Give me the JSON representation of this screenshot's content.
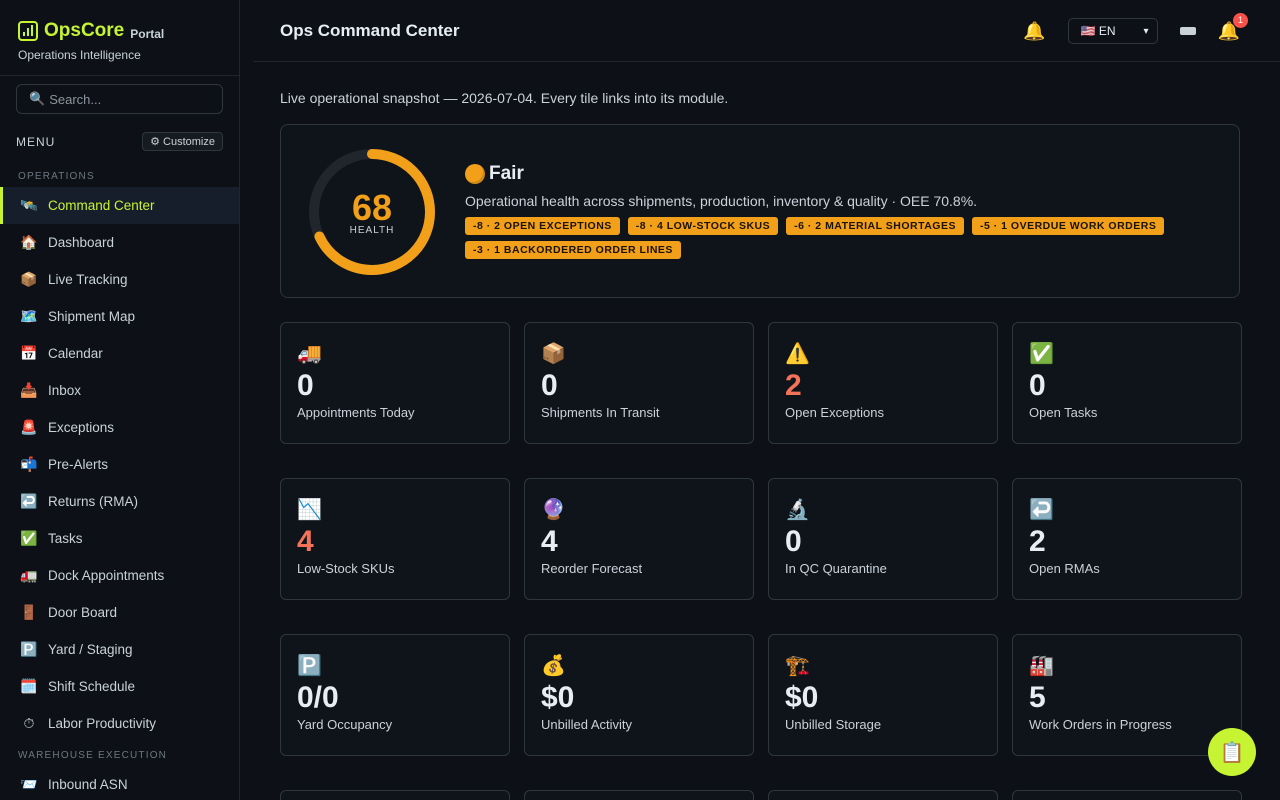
{
  "brand": {
    "name": "OpsCore",
    "portal": "Portal",
    "subtitle": "Operations Intelligence"
  },
  "search": {
    "placeholder": "Search..."
  },
  "menu": {
    "label": "MENU",
    "customize": "⚙ Customize"
  },
  "sections": {
    "operations": "OPERATIONS",
    "warehouse": "WAREHOUSE EXECUTION"
  },
  "nav": [
    {
      "label": "Command Center",
      "icon": "🛰️",
      "active": true
    },
    {
      "label": "Dashboard",
      "icon": "🏠"
    },
    {
      "label": "Live Tracking",
      "icon": "📦"
    },
    {
      "label": "Shipment Map",
      "icon": "🗺️"
    },
    {
      "label": "Calendar",
      "icon": "📅"
    },
    {
      "label": "Inbox",
      "icon": "📥"
    },
    {
      "label": "Exceptions",
      "icon": "🚨"
    },
    {
      "label": "Pre-Alerts",
      "icon": "📬"
    },
    {
      "label": "Returns (RMA)",
      "icon": "↩️"
    },
    {
      "label": "Tasks",
      "icon": "✅"
    },
    {
      "label": "Dock Appointments",
      "icon": "🚛"
    },
    {
      "label": "Door Board",
      "icon": "🚪"
    },
    {
      "label": "Yard / Staging",
      "icon": "🅿️"
    },
    {
      "label": "Shift Schedule",
      "icon": "🗓️"
    },
    {
      "label": "Labor Productivity",
      "icon": "⏱"
    }
  ],
  "nav_warehouse": [
    {
      "label": "Inbound ASN",
      "icon": "📨"
    }
  ],
  "header": {
    "title": "Ops Command Center",
    "language": "🇺🇸 EN",
    "notif_count": "1"
  },
  "snapshot": "Live operational snapshot — 2026-07-04. Every tile links into its module.",
  "health": {
    "score": "68",
    "score_value": 68,
    "label": "HEALTH",
    "status": "Fair",
    "description": "Operational health across shipments, production, inventory & quality · OEE 70.8%.",
    "tags": [
      "-8 · 2 OPEN EXCEPTIONS",
      "-8 · 4 LOW-STOCK SKUS",
      "-6 · 2 MATERIAL SHORTAGES",
      "-5 · 1 OVERDUE WORK ORDERS",
      "-3 · 1 BACKORDERED ORDER LINES"
    ],
    "color": "#f2a01a"
  },
  "tiles": [
    [
      {
        "icon": "🚚",
        "value": "0",
        "label": "Appointments Today"
      },
      {
        "icon": "📦",
        "value": "0",
        "label": "Shipments In Transit"
      },
      {
        "icon": "⚠️",
        "value": "2",
        "label": "Open Exceptions",
        "warn": true
      },
      {
        "icon": "✅",
        "value": "0",
        "label": "Open Tasks"
      }
    ],
    [
      {
        "icon": "📉",
        "value": "4",
        "label": "Low-Stock SKUs",
        "warn": true
      },
      {
        "icon": "🔮",
        "value": "4",
        "label": "Reorder Forecast"
      },
      {
        "icon": "🔬",
        "value": "0",
        "label": "In QC Quarantine"
      },
      {
        "icon": "↩️",
        "value": "2",
        "label": "Open RMAs"
      }
    ],
    [
      {
        "icon": "🅿️",
        "value": "0/0",
        "label": "Yard Occupancy"
      },
      {
        "icon": "💰",
        "value": "$0",
        "label": "Unbilled Activity"
      },
      {
        "icon": "🏗️",
        "value": "$0",
        "label": "Unbilled Storage"
      },
      {
        "icon": "🏭",
        "value": "5",
        "label": "Work Orders in Progress"
      }
    ]
  ],
  "fab_icon": "📋"
}
